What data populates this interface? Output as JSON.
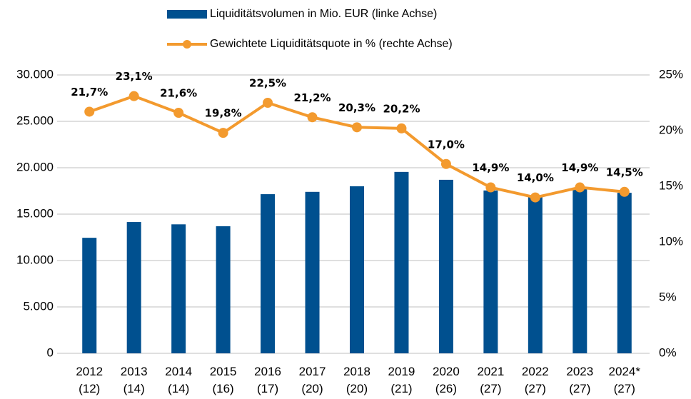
{
  "chart_data": {
    "type": "bar_line",
    "categories": [
      "2012\n(12)",
      "2013\n(14)",
      "2014\n(14)",
      "2015\n(16)",
      "2016\n(17)",
      "2017\n(20)",
      "2018\n(20)",
      "2019\n(21)",
      "2020\n(26)",
      "2021\n(27)",
      "2022\n(27)",
      "2023\n(27)",
      "2024*\n(27)"
    ],
    "series": [
      {
        "name": "Liquiditätsvolumen in Mio. EUR (linke Achse)",
        "type": "bar",
        "color": "#00508f",
        "values": [
          12450,
          14150,
          13900,
          13700,
          17150,
          17400,
          18000,
          19550,
          18700,
          17550,
          16900,
          17850,
          17300
        ]
      },
      {
        "name": "Gewichtete Liquiditätsquote in % (rechte Achse)",
        "type": "line",
        "axis": "y2",
        "color": "#f39a2e",
        "values": [
          21.7,
          23.1,
          21.6,
          19.8,
          22.5,
          21.2,
          20.3,
          20.2,
          17.0,
          14.9,
          14.0,
          14.9,
          14.5
        ],
        "value_labels": [
          "21,7%",
          "23,1%",
          "21,6%",
          "19,8%",
          "22,5%",
          "21,2%",
          "20,3%",
          "20,2%",
          "17,0%",
          "14,9%",
          "14,0%",
          "14,9%",
          "14,5%"
        ]
      }
    ],
    "ylim": [
      0,
      30000
    ],
    "yticks": [
      0,
      {
        "value": 5000,
        "label": "5.000"
      },
      {
        "value": 10000,
        "label": "10.000"
      },
      {
        "value": 15000,
        "label": "15.000"
      },
      {
        "value": 20000,
        "label": "20.000"
      },
      {
        "value": 25000,
        "label": "25.000"
      },
      {
        "value": 30000,
        "label": "30.000"
      }
    ],
    "y2lim": [
      0,
      25
    ],
    "y2ticks": [
      {
        "value": 0,
        "label": "0%"
      },
      {
        "value": 5,
        "label": "5%"
      },
      {
        "value": 10,
        "label": "10%"
      },
      {
        "value": 15,
        "label": "15%"
      },
      {
        "value": 20,
        "label": "20%"
      },
      {
        "value": 25,
        "label": "25%"
      }
    ],
    "grid": true,
    "legend": "top"
  }
}
